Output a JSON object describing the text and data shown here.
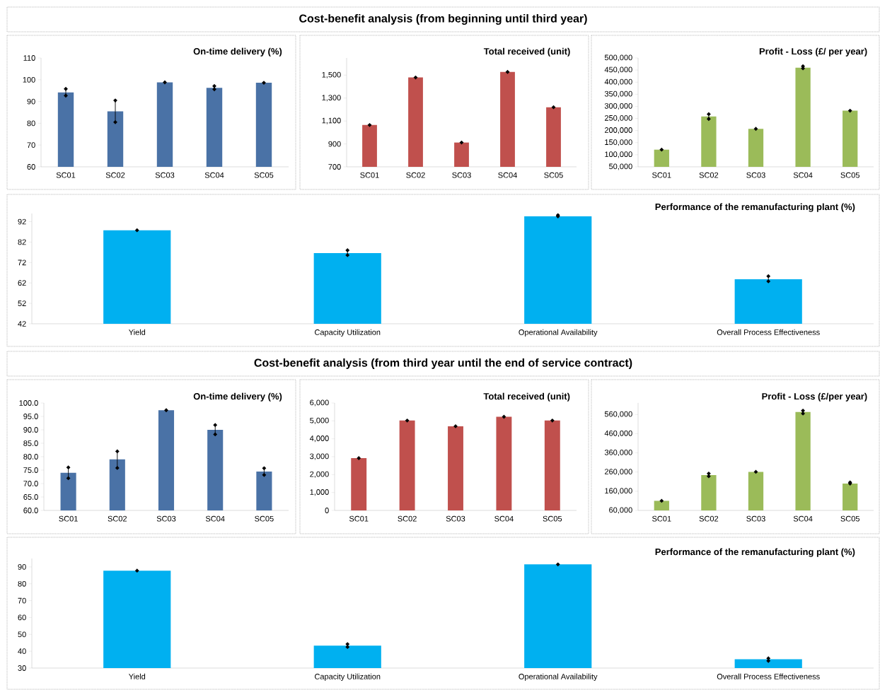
{
  "chart_data": [
    {
      "type": "bar",
      "title": "On-time delivery (%)",
      "annotations": [
        "Cost-benefit analysis (from beginning until third year)"
      ],
      "categories": [
        "SC01",
        "SC02",
        "SC03",
        "SC04",
        "SC05"
      ],
      "values": [
        94.2,
        85.5,
        98.8,
        96.3,
        98.6
      ],
      "errors": [
        [
          92.7,
          95.8
        ],
        [
          80.5,
          90.5
        ],
        null,
        [
          95.6,
          97.1
        ],
        null
      ],
      "color": "#4a72a6",
      "ylim": [
        60,
        110
      ],
      "yticks": [
        60,
        70,
        80,
        90,
        100,
        110
      ]
    },
    {
      "type": "bar",
      "title": "Total received (unit)",
      "categories": [
        "SC01",
        "SC02",
        "SC03",
        "SC04",
        "SC05"
      ],
      "values": [
        1065,
        1480,
        912,
        1528,
        1220
      ],
      "errors": [
        null,
        null,
        null,
        null,
        null
      ],
      "color": "#c0504d",
      "ylim": [
        700,
        1650
      ],
      "yticks": [
        700,
        900,
        {
          "value": 1100,
          "label": "1,100"
        },
        {
          "value": 1300,
          "label": "1,300"
        },
        {
          "value": 1500,
          "label": "1,500"
        }
      ]
    },
    {
      "type": "bar",
      "title": "Profit - Loss (£/ per year)",
      "categories": [
        "SC01",
        "SC02",
        "SC03",
        "SC04",
        "SC05"
      ],
      "values": [
        121000,
        258000,
        207000,
        460000,
        282000
      ],
      "errors": [
        null,
        [
          248000,
          268000
        ],
        null,
        [
          457000,
          466000
        ],
        null
      ],
      "color": "#9bbb59",
      "ylim": [
        50000,
        500000
      ],
      "yticks": [
        {
          "value": 50000,
          "label": "50,000"
        },
        {
          "value": 100000,
          "label": "100,000"
        },
        {
          "value": 150000,
          "label": "150,000"
        },
        {
          "value": 200000,
          "label": "200,000"
        },
        {
          "value": 250000,
          "label": "250,000"
        },
        {
          "value": 300000,
          "label": "300,000"
        },
        {
          "value": 350000,
          "label": "350,000"
        },
        {
          "value": 400000,
          "label": "400,000"
        },
        {
          "value": 450000,
          "label": "450,000"
        },
        {
          "value": 500000,
          "label": "500,000"
        }
      ]
    },
    {
      "type": "bar",
      "title": "Performance of the remanufacturing plant (%)",
      "categories": [
        "Yield",
        "Capacity Utilization",
        "Operational Availability",
        "Overall Process Effectiveness"
      ],
      "values": [
        87.8,
        76.6,
        94.6,
        63.8
      ],
      "errors": [
        null,
        [
          75.6,
          78.0
        ],
        [
          94.6,
          95.2
        ],
        [
          62.8,
          65.3
        ]
      ],
      "color": "#00b0f0",
      "ylim": [
        42,
        96
      ],
      "yticks": [
        42,
        52,
        62,
        72,
        82,
        92
      ]
    },
    {
      "type": "bar",
      "title": "On-time delivery (%)",
      "annotations": [
        "Cost-benefit analysis (from third year until the end of service contract)"
      ],
      "categories": [
        "SC01",
        "SC02",
        "SC03",
        "SC04",
        "SC05"
      ],
      "values": [
        74.0,
        79.0,
        97.3,
        90.0,
        74.5
      ],
      "errors": [
        [
          72.0,
          76.0
        ],
        [
          75.8,
          82.0
        ],
        null,
        [
          88.3,
          91.8
        ],
        [
          73.2,
          75.7
        ]
      ],
      "color": "#4a72a6",
      "ylim": [
        60,
        100
      ],
      "yticks": [
        {
          "value": 60,
          "label": "60.0"
        },
        {
          "value": 65,
          "label": "65.0"
        },
        {
          "value": 70,
          "label": "70.0"
        },
        {
          "value": 75,
          "label": "75.0"
        },
        {
          "value": 80,
          "label": "80.0"
        },
        {
          "value": 85,
          "label": "85.0"
        },
        {
          "value": 90,
          "label": "90.0"
        },
        {
          "value": 95,
          "label": "95.0"
        },
        {
          "value": 100,
          "label": "100.0"
        }
      ]
    },
    {
      "type": "bar",
      "title": "Total received (unit)",
      "categories": [
        "SC01",
        "SC02",
        "SC03",
        "SC04",
        "SC05"
      ],
      "values": [
        2920,
        5020,
        4700,
        5230,
        5020
      ],
      "errors": [
        null,
        null,
        null,
        null,
        null
      ],
      "color": "#c0504d",
      "ylim": [
        0,
        6000
      ],
      "yticks": [
        0,
        {
          "value": 1000,
          "label": "1,000"
        },
        {
          "value": 2000,
          "label": "2,000"
        },
        {
          "value": 3000,
          "label": "3,000"
        },
        {
          "value": 4000,
          "label": "4,000"
        },
        {
          "value": 5000,
          "label": "5,000"
        },
        {
          "value": 6000,
          "label": "6,000"
        }
      ]
    },
    {
      "type": "bar",
      "title": "Profit - Loss (£/per year)",
      "categories": [
        "SC01",
        "SC02",
        "SC03",
        "SC04",
        "SC05"
      ],
      "values": [
        110000,
        244000,
        261000,
        573000,
        200000
      ],
      "errors": [
        null,
        [
          238000,
          252000
        ],
        null,
        [
          565000,
          580000
        ],
        [
          200000,
          206000
        ]
      ],
      "color": "#9bbb59",
      "ylim": [
        60000,
        620000
      ],
      "yticks": [
        {
          "value": 60000,
          "label": "60,000"
        },
        {
          "value": 160000,
          "label": "160,000"
        },
        {
          "value": 260000,
          "label": "260,000"
        },
        {
          "value": 360000,
          "label": "360,000"
        },
        {
          "value": 460000,
          "label": "460,000"
        },
        {
          "value": 560000,
          "label": "560,000"
        }
      ]
    },
    {
      "type": "bar",
      "title": "Performance of the remanufacturing plant (%)",
      "categories": [
        "Yield",
        "Capacity Utilization",
        "Operational Availability",
        "Overall Process Effectiveness"
      ],
      "values": [
        87.8,
        43.3,
        91.5,
        35.2
      ],
      "errors": [
        null,
        [
          42.5,
          44.2
        ],
        null,
        [
          34.3,
          35.8
        ]
      ],
      "color": "#00b0f0",
      "ylim": [
        30,
        95
      ],
      "yticks": [
        30,
        40,
        50,
        60,
        70,
        80,
        90
      ]
    }
  ]
}
